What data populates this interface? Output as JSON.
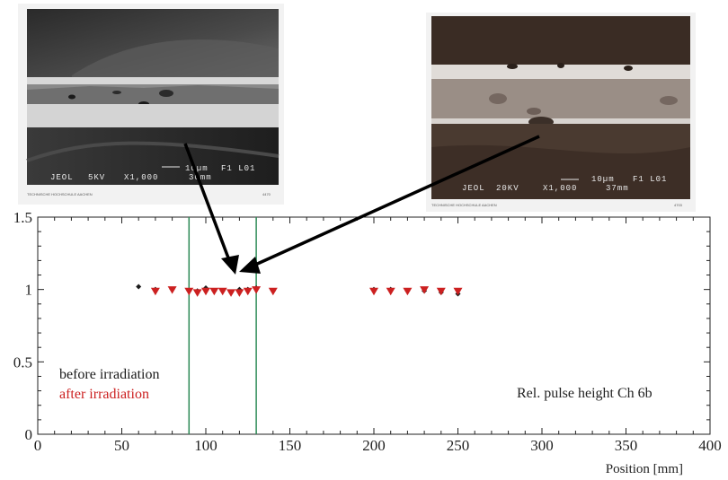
{
  "micrographs": {
    "left": {
      "instrument": "JEOL",
      "voltage": "5KV",
      "magnification": "X1,000",
      "working_distance": "30mm",
      "scale_bar": "10µm",
      "frame": "F1 L01",
      "institution": "TECHNISCHE HOCHSCHULE AACHEN",
      "plate_number": "4470"
    },
    "right": {
      "instrument": "JEOL",
      "voltage": "20KV",
      "magnification": "X1,000",
      "working_distance": "37mm",
      "scale_bar": "10µm",
      "frame": "F1 L01",
      "institution": "TECHNISCHE HOCHSCHULE AACHEN",
      "plate_number": "4703"
    }
  },
  "colors": {
    "before": "#1a1a1a",
    "after": "#cc2020",
    "boundary_line": "#2e8b57",
    "axis": "#222222"
  },
  "chart_data": {
    "type": "scatter",
    "title": "",
    "annotation": "Rel. pulse height Ch 6b",
    "xlabel": "Position [mm]",
    "ylabel": "",
    "xlim": [
      0,
      400
    ],
    "ylim": [
      0,
      1.5
    ],
    "x_ticks": [
      0,
      50,
      100,
      150,
      200,
      250,
      300,
      350,
      400
    ],
    "y_ticks": [
      0,
      0.5,
      1,
      1.5
    ],
    "x_tick_labels": [
      "0",
      "50",
      "100",
      "150",
      "200",
      "250",
      "300",
      "350",
      "400"
    ],
    "y_tick_labels": [
      "0",
      "0.5",
      "1",
      "1.5"
    ],
    "vertical_lines": [
      90,
      130
    ],
    "legend_position": "bottom-left",
    "series": [
      {
        "name": "before irradiation",
        "marker": "diamond",
        "x": [
          60,
          70,
          80,
          90,
          95,
          100,
          105,
          110,
          115,
          120,
          125,
          130,
          140,
          200,
          210,
          220,
          230,
          240,
          250
        ],
        "y": [
          1.02,
          1.0,
          1.0,
          0.99,
          0.99,
          1.01,
          0.99,
          0.99,
          0.98,
          1.0,
          1.0,
          1.01,
          0.99,
          1.0,
          1.0,
          0.99,
          0.99,
          0.98,
          0.97
        ]
      },
      {
        "name": "after irradiation",
        "marker": "triangle-down",
        "x": [
          70,
          80,
          90,
          95,
          100,
          105,
          110,
          115,
          120,
          125,
          130,
          140,
          200,
          210,
          220,
          230,
          240,
          250
        ],
        "y": [
          0.99,
          1.0,
          0.99,
          0.98,
          0.99,
          0.99,
          0.99,
          0.98,
          0.98,
          0.99,
          1.0,
          0.99,
          0.99,
          0.99,
          0.99,
          1.0,
          0.99,
          0.99
        ]
      }
    ]
  }
}
